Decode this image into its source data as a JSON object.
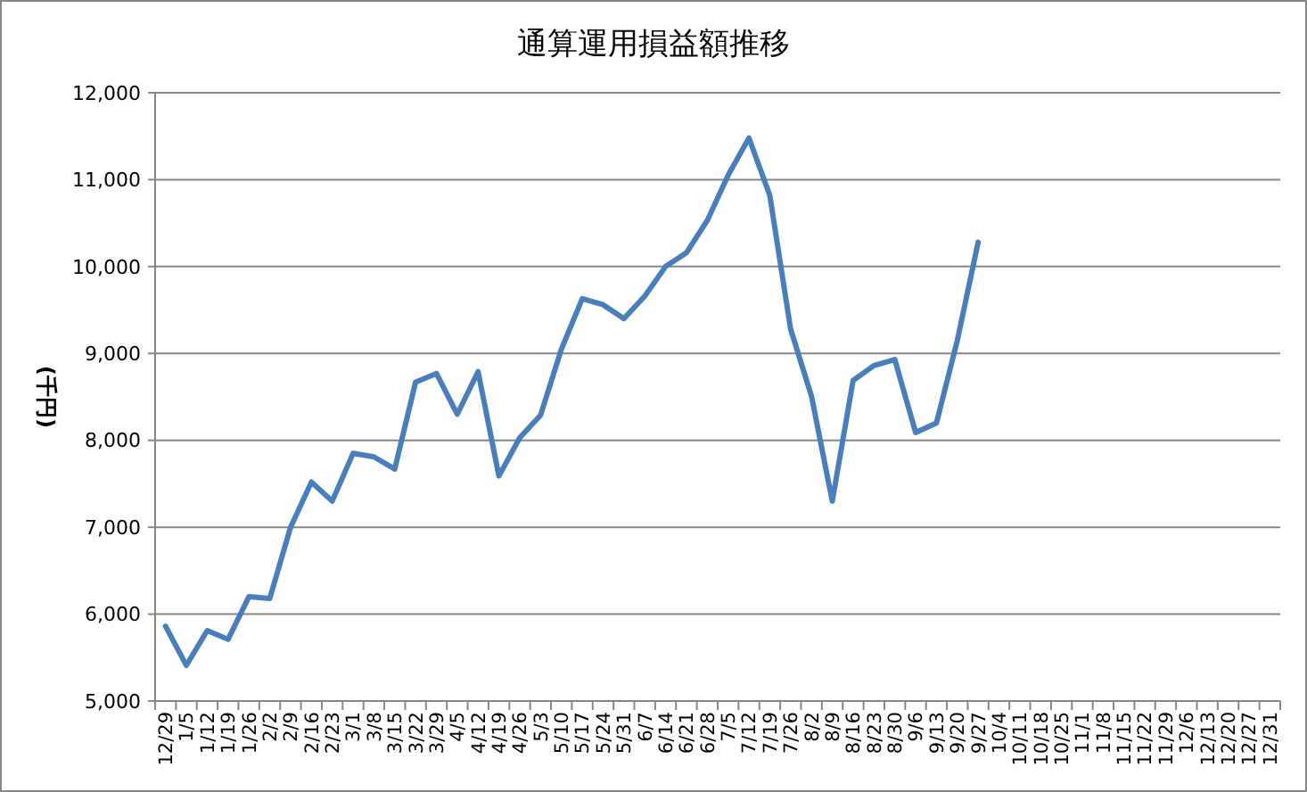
{
  "chart_data": {
    "type": "line",
    "title": "通算運用損益額推移",
    "ylabel": "(千円)",
    "categories": [
      "12/29",
      "1/5",
      "1/12",
      "1/19",
      "1/26",
      "2/2",
      "2/9",
      "2/16",
      "2/23",
      "3/1",
      "3/8",
      "3/15",
      "3/22",
      "3/29",
      "4/5",
      "4/12",
      "4/19",
      "4/26",
      "5/3",
      "5/10",
      "5/17",
      "5/24",
      "5/31",
      "6/7",
      "6/14",
      "6/21",
      "6/28",
      "7/5",
      "7/12",
      "7/19",
      "7/26",
      "8/2",
      "8/9",
      "8/16",
      "8/23",
      "8/30",
      "9/6",
      "9/13",
      "9/20",
      "9/27",
      "10/4",
      "10/11",
      "10/18",
      "10/25",
      "11/1",
      "11/8",
      "11/15",
      "11/22",
      "11/29",
      "12/6",
      "12/13",
      "12/20",
      "12/27",
      "12/31"
    ],
    "series": [
      {
        "color": "#4a7ebb",
        "values": [
          5860,
          5410,
          5810,
          5710,
          6200,
          6180,
          7000,
          7520,
          7300,
          7850,
          7810,
          7670,
          8670,
          8770,
          8300,
          8790,
          7590,
          8030,
          8290,
          9050,
          9630,
          9560,
          9400,
          9660,
          10000,
          10160,
          10530,
          11050,
          11480,
          10820,
          9280,
          8510,
          7300,
          8690,
          8860,
          8930,
          8090,
          8200,
          9150,
          10280,
          null,
          null,
          null,
          null,
          null,
          null,
          null,
          null,
          null,
          null,
          null,
          null,
          null,
          null
        ]
      }
    ],
    "ylim": [
      5000,
      12000
    ],
    "yticks": [
      {
        "value": 5000,
        "label": "5,000"
      },
      {
        "value": 6000,
        "label": "6,000"
      },
      {
        "value": 7000,
        "label": "7,000"
      },
      {
        "value": 8000,
        "label": "8,000"
      },
      {
        "value": 9000,
        "label": "9,000"
      },
      {
        "value": 10000,
        "label": "10,000"
      },
      {
        "value": 11000,
        "label": "11,000"
      },
      {
        "value": 12000,
        "label": "12,000"
      }
    ],
    "grid": "y",
    "marker": "none",
    "line_style": "solid"
  }
}
